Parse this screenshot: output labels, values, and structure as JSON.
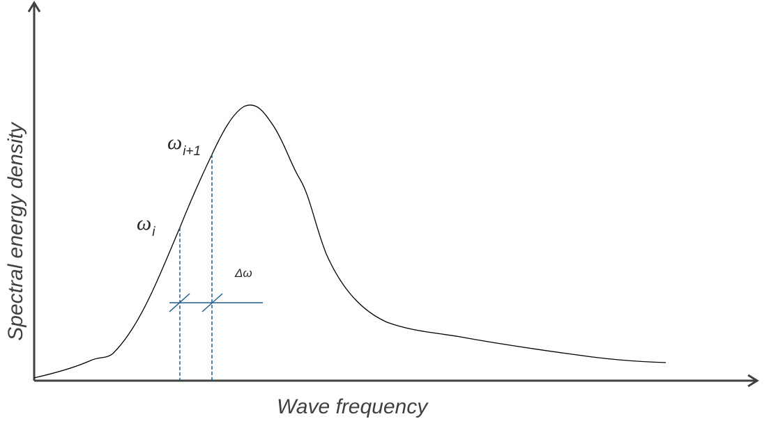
{
  "axes": {
    "x_title": "Wave frequency",
    "y_title": "Spectral energy density"
  },
  "labels": {
    "omega_i": {
      "symbol": "ω",
      "subscript": "i"
    },
    "omega_i1": {
      "symbol": "ω",
      "subscript": "i+1"
    },
    "delta_omega": "Δω"
  },
  "colors": {
    "axis": "#404040",
    "curve": "#000000",
    "marker": "#1f5f8b",
    "text": "#404040"
  }
}
